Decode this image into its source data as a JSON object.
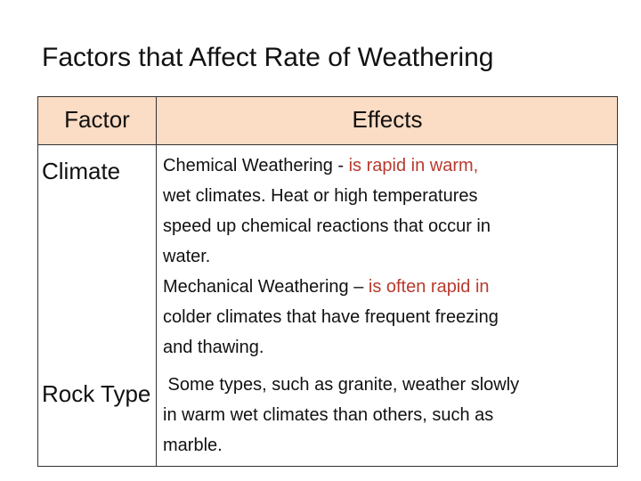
{
  "title": "Factors that Affect Rate of Weathering",
  "table": {
    "header": [
      "Factor",
      "Effects"
    ],
    "header_color": "#fbdcc5",
    "rows": [
      {
        "factor": "Climate",
        "effects": [
          [
            {
              "text": "Chemical Weathering - "
            },
            {
              "text": "is rapid in warm,",
              "color": "#b83a2e"
            }
          ],
          [
            {
              "text": "wet climates. Heat or high temperatures"
            }
          ],
          [
            {
              "text": "speed up chemical reactions that occur in"
            }
          ],
          [
            {
              "text": "water."
            }
          ],
          [
            {
              "text": "Mechanical Weathering – "
            },
            {
              "text": "is often rapid in",
              "color": "#b83a2e"
            }
          ],
          [
            {
              "text": "colder climates that have frequent freezing"
            }
          ],
          [
            {
              "text": "and thawing."
            }
          ]
        ]
      },
      {
        "factor": "Rock Type",
        "effects": [
          [
            {
              "text": " Some types, such as granite, weather slowly"
            }
          ],
          [
            {
              "text": "in warm wet climates than others, such as"
            }
          ],
          [
            {
              "text": "marble."
            }
          ]
        ]
      }
    ]
  }
}
